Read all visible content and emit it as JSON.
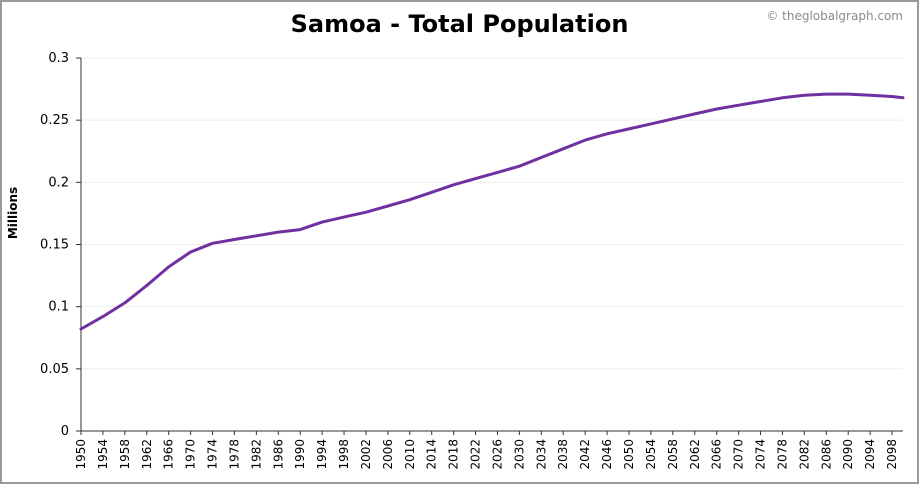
{
  "title": "Samoa - Total Population",
  "credit": "© theglobalgraph.com",
  "colors": {
    "line": "#7030a0",
    "grid": "#eeeeee",
    "axis": "#333333",
    "frame": "#9a9a9a"
  },
  "chart_data": {
    "type": "line",
    "title": "Samoa - Total Population",
    "xlabel": "",
    "ylabel": "Millions",
    "xlim": [
      1950,
      2100
    ],
    "ylim": [
      0,
      0.3
    ],
    "yticks": [
      0,
      0.05,
      0.1,
      0.15,
      0.2,
      0.25,
      0.3
    ],
    "ytick_labels": [
      "0",
      "0.05",
      "0.1",
      "0.15",
      "0.2",
      "0.25",
      "0.3"
    ],
    "xticks": [
      1950,
      1954,
      1958,
      1962,
      1966,
      1970,
      1974,
      1978,
      1982,
      1986,
      1990,
      1994,
      1998,
      2002,
      2006,
      2010,
      2014,
      2018,
      2022,
      2026,
      2030,
      2034,
      2038,
      2042,
      2046,
      2050,
      2054,
      2058,
      2062,
      2066,
      2070,
      2074,
      2078,
      2082,
      2086,
      2090,
      2094,
      2098
    ],
    "xtick_labels": [
      "1950",
      "1954",
      "1958",
      "1962",
      "1966",
      "1970",
      "1974",
      "1978",
      "1982",
      "1986",
      "1990",
      "1994",
      "1998",
      "2002",
      "2006",
      "2010",
      "2014",
      "2018",
      "2022",
      "2026",
      "2030",
      "2034",
      "2038",
      "2042",
      "2046",
      "2050",
      "2054",
      "2058",
      "2062",
      "2066",
      "2070",
      "2074",
      "2078",
      "2082",
      "2086",
      "2090",
      "2094",
      "2098"
    ],
    "grid": true,
    "series": [
      {
        "name": "",
        "x": [
          1950,
          1954,
          1958,
          1962,
          1966,
          1970,
          1974,
          1978,
          1982,
          1986,
          1990,
          1994,
          1998,
          2002,
          2006,
          2010,
          2014,
          2018,
          2022,
          2026,
          2030,
          2034,
          2038,
          2042,
          2046,
          2050,
          2054,
          2058,
          2062,
          2066,
          2070,
          2074,
          2078,
          2082,
          2086,
          2090,
          2094,
          2098,
          2100
        ],
        "y": [
          0.082,
          0.092,
          0.103,
          0.117,
          0.132,
          0.144,
          0.151,
          0.154,
          0.157,
          0.16,
          0.162,
          0.168,
          0.172,
          0.176,
          0.181,
          0.186,
          0.192,
          0.198,
          0.203,
          0.208,
          0.213,
          0.22,
          0.227,
          0.234,
          0.239,
          0.243,
          0.247,
          0.251,
          0.255,
          0.259,
          0.262,
          0.265,
          0.268,
          0.27,
          0.271,
          0.271,
          0.27,
          0.269,
          0.268
        ]
      }
    ]
  }
}
